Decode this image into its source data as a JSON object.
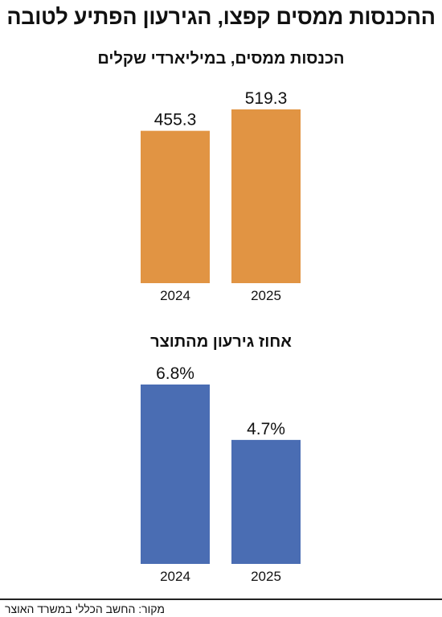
{
  "title": "ההכנסות ממסים קפצו, הגירעון הפתיע לטובה",
  "source": "מקור: החשב הכללי במשרד האוצר",
  "colors": {
    "orange": "#E19443",
    "blue": "#4A6DB3"
  },
  "chart_data": [
    {
      "type": "bar",
      "title": "הכנסות ממסים, במיליארדי שקלים",
      "categories": [
        "2024",
        "2025"
      ],
      "values": [
        455.3,
        519.3
      ],
      "labels": [
        "455.3",
        "519.3"
      ],
      "color": "#E19443",
      "grid": false,
      "xlabel": "",
      "ylabel": ""
    },
    {
      "type": "bar",
      "title": "אחוז גירעון מהתוצר",
      "categories": [
        "2024",
        "2025"
      ],
      "values": [
        6.8,
        4.7
      ],
      "labels": [
        "6.8%",
        "4.7%"
      ],
      "color": "#4A6DB3",
      "grid": false,
      "xlabel": "",
      "ylabel": ""
    }
  ]
}
